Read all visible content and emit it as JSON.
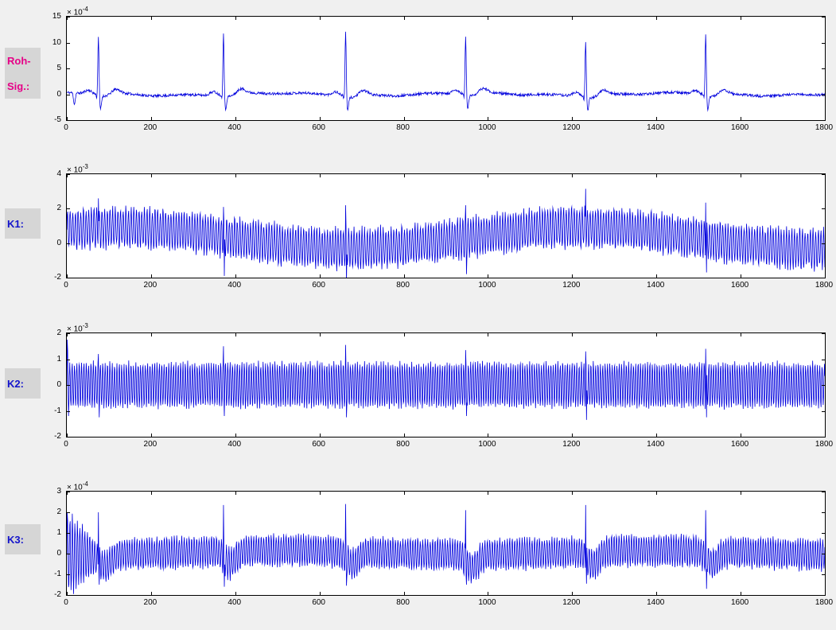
{
  "figure": {
    "background": "#f0f0f0",
    "axes_background": "#ffffff",
    "line_color": "#0000dd",
    "tick_label_color": "#000000",
    "label_box_color": "#d6d6d6"
  },
  "chart_data": [
    {
      "id": "roh-sig",
      "type": "line",
      "side_label": {
        "lines": [
          "Roh-",
          "Sig.:"
        ],
        "color": "#e60087"
      },
      "x_range": [
        0,
        1800
      ],
      "x_ticks": [
        0,
        200,
        400,
        600,
        800,
        1000,
        1200,
        1400,
        1600,
        1800
      ],
      "y_range": [
        -5,
        15
      ],
      "y_ticks": [
        -5,
        0,
        5,
        10,
        15
      ],
      "y_scale": {
        "prefix": "× 10",
        "exponent": "-4"
      },
      "signal": {
        "kind": "ecg",
        "noise": 0.5,
        "wander": 0.45,
        "p_amp": 0.7,
        "q_amp": -0.9,
        "s_amp": -2.6,
        "t_amp": 0.85,
        "extras": [
          {
            "x": 18,
            "amp": -2.2,
            "sigma": 2
          }
        ],
        "beats": [
          {
            "x": 75,
            "r": 11.6
          },
          {
            "x": 372,
            "r": 12.4
          },
          {
            "x": 662,
            "r": 12.9
          },
          {
            "x": 947,
            "r": 11.4
          },
          {
            "x": 1232,
            "r": 11.0
          },
          {
            "x": 1517,
            "r": 11.9
          }
        ]
      }
    },
    {
      "id": "k1",
      "type": "line",
      "side_label": {
        "lines": [
          "K1:"
        ],
        "color": "#1414cc"
      },
      "x_range": [
        0,
        1800
      ],
      "x_ticks": [
        0,
        200,
        400,
        600,
        800,
        1000,
        1200,
        1400,
        1600,
        1800
      ],
      "y_range": [
        -2,
        4
      ],
      "y_ticks": [
        -2,
        0,
        2,
        4
      ],
      "y_scale": {
        "prefix": "× 10",
        "exponent": "-3"
      },
      "signal": {
        "kind": "osc",
        "period": 6.3,
        "amp": 1.1,
        "amp_jitter": 0.22,
        "baseline": {
          "mean": 0.3,
          "swing": 0.62,
          "period": 1100,
          "peak_x": 120
        },
        "beats": [
          {
            "x": 75,
            "up": 2.6
          },
          {
            "x": 372,
            "up": 2.1,
            "down": -1.9
          },
          {
            "x": 662,
            "up": 2.2,
            "down": -2.3
          },
          {
            "x": 947,
            "up": 2.2,
            "down": -1.8
          },
          {
            "x": 1232,
            "up": 3.15
          },
          {
            "x": 1517,
            "up": 2.35,
            "down": -1.7
          }
        ]
      }
    },
    {
      "id": "k2",
      "type": "line",
      "side_label": {
        "lines": [
          "K2:"
        ],
        "color": "#1414cc"
      },
      "x_range": [
        0,
        1800
      ],
      "x_ticks": [
        0,
        200,
        400,
        600,
        800,
        1000,
        1200,
        1400,
        1600,
        1800
      ],
      "y_range": [
        -2,
        2
      ],
      "y_ticks": [
        -2,
        -1,
        0,
        1,
        2
      ],
      "y_scale": {
        "prefix": "× 10",
        "exponent": "-3"
      },
      "signal": {
        "kind": "osc",
        "period": 5.6,
        "amp": 0.85,
        "amp_jitter": 0.12,
        "baseline": {
          "mean": 0,
          "swing": 0,
          "period": 1,
          "peak_x": 0
        },
        "start": {
          "len": 6,
          "scale": 2.4
        },
        "beats": [
          {
            "x": 75,
            "up": 1.2,
            "down": -1.25
          },
          {
            "x": 372,
            "up": 1.5,
            "down": -1.2
          },
          {
            "x": 662,
            "up": 1.55,
            "down": -1.25
          },
          {
            "x": 947,
            "up": 1.35,
            "down": -1.2
          },
          {
            "x": 1232,
            "up": 1.3,
            "down": -1.35
          },
          {
            "x": 1517,
            "up": 1.4,
            "down": -1.25
          }
        ]
      }
    },
    {
      "id": "k3",
      "type": "line",
      "side_label": {
        "lines": [
          "K3:"
        ],
        "color": "#1414cc"
      },
      "x_range": [
        0,
        1800
      ],
      "x_ticks": [
        0,
        200,
        400,
        600,
        800,
        1000,
        1200,
        1400,
        1600,
        1800
      ],
      "y_range": [
        -2,
        3
      ],
      "y_ticks": [
        -2,
        -1,
        0,
        1,
        2,
        3
      ],
      "y_scale": {
        "prefix": "× 10",
        "exponent": "-4"
      },
      "signal": {
        "kind": "osc",
        "period": 5.9,
        "amp": 0.72,
        "amp_jitter": 0.18,
        "baseline": {
          "mean": 0.05,
          "swing": 0.1,
          "period": 900,
          "peak_x": 500
        },
        "start": {
          "len": 70,
          "scale": 2.8
        },
        "dip": {
          "depth": -0.6,
          "sigma": 14,
          "offset": 16
        },
        "beats": [
          {
            "x": 75,
            "up": 2.0,
            "down": -1.5
          },
          {
            "x": 372,
            "up": 2.35,
            "down": -1.6
          },
          {
            "x": 662,
            "up": 2.4,
            "down": -1.55
          },
          {
            "x": 947,
            "up": 2.1,
            "down": -1.5
          },
          {
            "x": 1232,
            "up": 2.35,
            "down": -1.45
          },
          {
            "x": 1517,
            "up": 2.1,
            "down": -1.7
          }
        ]
      }
    }
  ]
}
